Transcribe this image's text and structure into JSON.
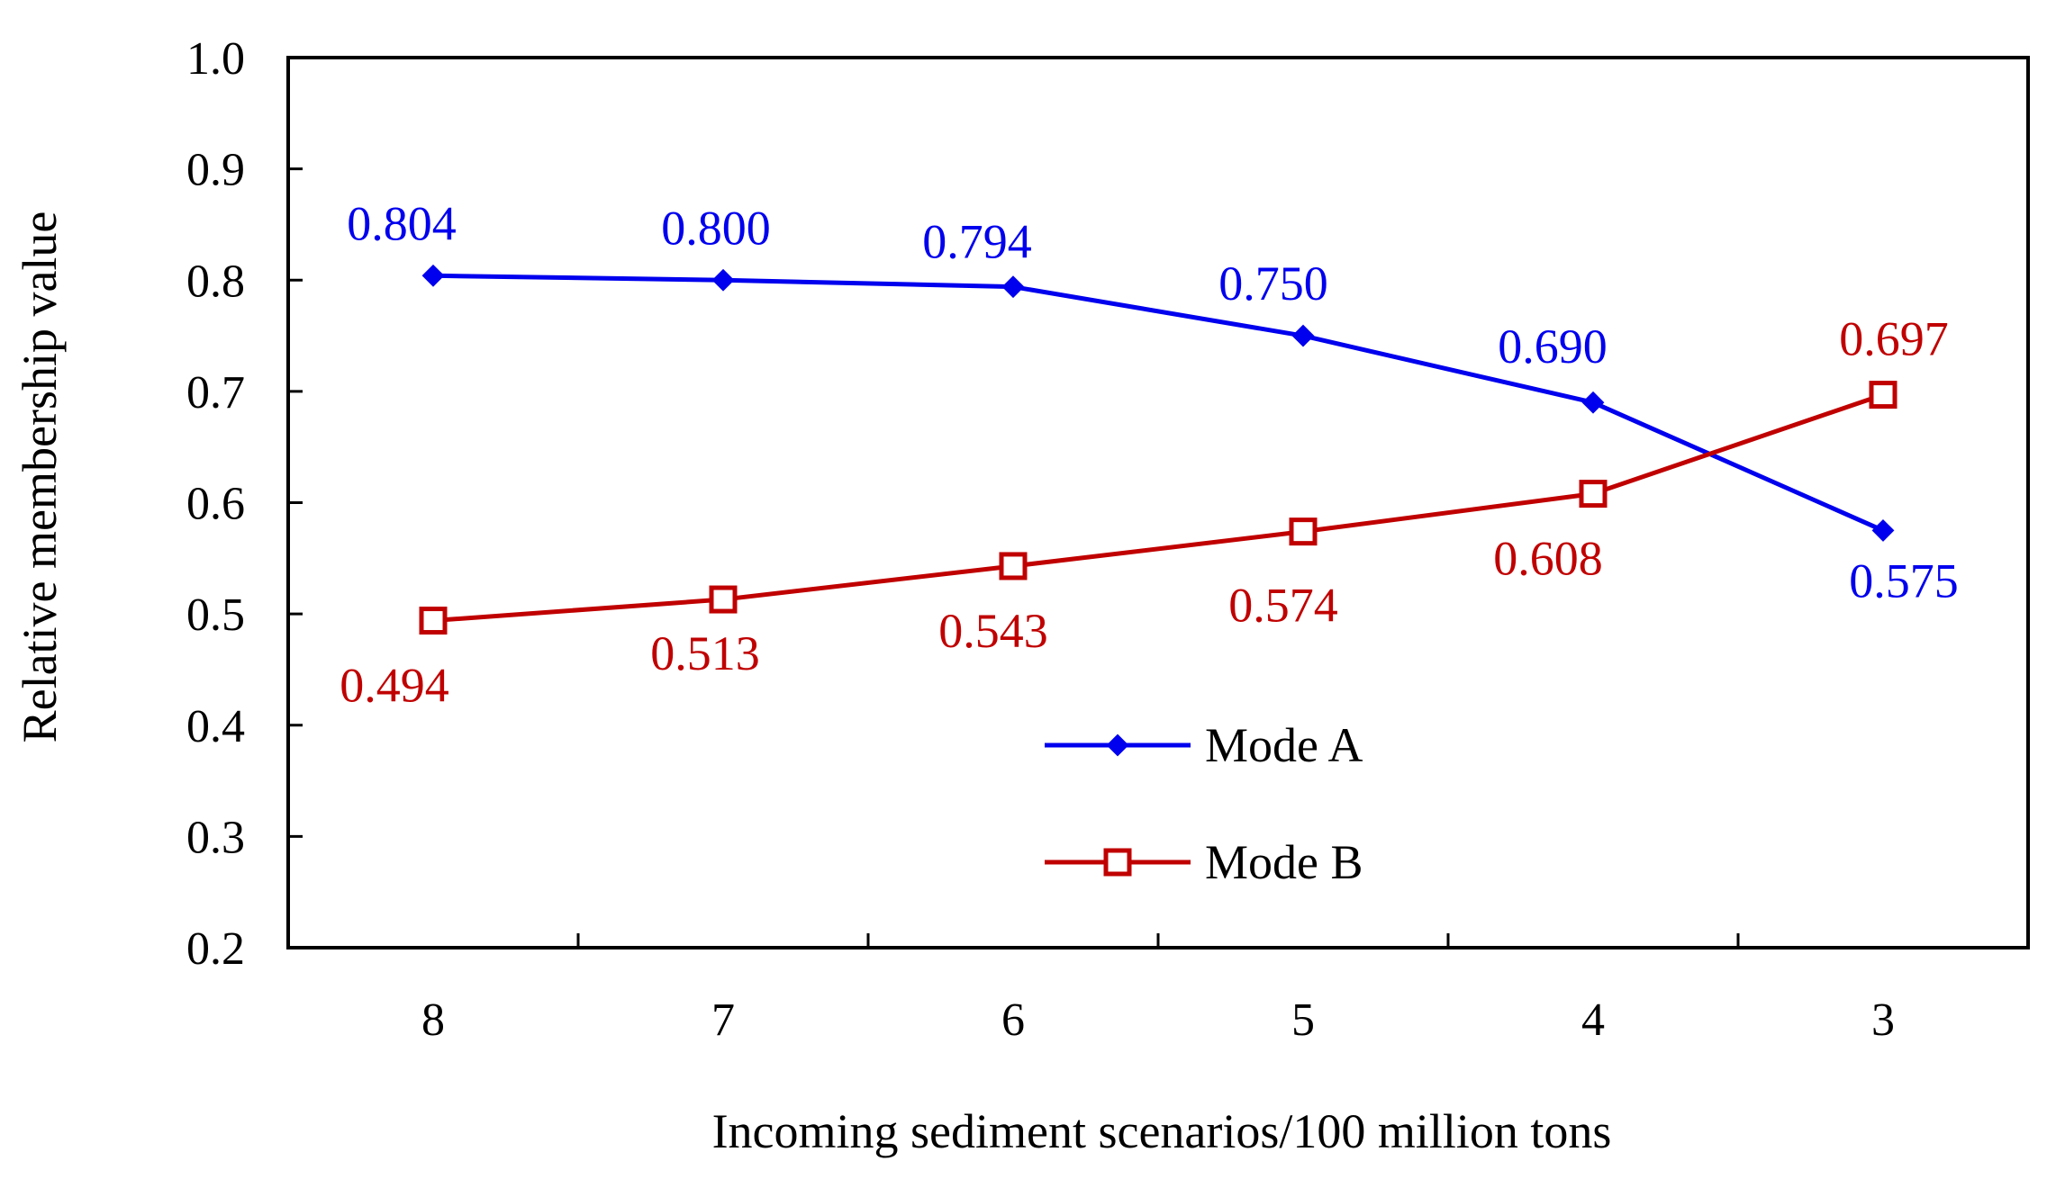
{
  "chart_data": {
    "type": "line",
    "title": "",
    "xlabel": "Incoming sediment scenarios/100 million tons",
    "ylabel": "Relative membership value",
    "categories": [
      "8",
      "7",
      "6",
      "5",
      "4",
      "3"
    ],
    "ylim": [
      0.2,
      1.0
    ],
    "yticks": [
      "0.2",
      "0.3",
      "0.4",
      "0.5",
      "0.6",
      "0.7",
      "0.8",
      "0.9",
      "1.0"
    ],
    "grid": false,
    "legend_position": "center-bottom",
    "series": [
      {
        "name": "Mode A",
        "color": "#0000ee",
        "marker": "diamond",
        "values": [
          0.804,
          0.8,
          0.794,
          0.75,
          0.69,
          0.575
        ],
        "labels": [
          "0.804",
          "0.800",
          "0.794",
          "0.750",
          "0.690",
          "0.575"
        ]
      },
      {
        "name": "Mode B",
        "color": "#c00000",
        "marker": "square-open",
        "values": [
          0.494,
          0.513,
          0.543,
          0.574,
          0.608,
          0.697
        ],
        "labels": [
          "0.494",
          "0.513",
          "0.543",
          "0.574",
          "0.608",
          "0.697"
        ]
      }
    ]
  }
}
